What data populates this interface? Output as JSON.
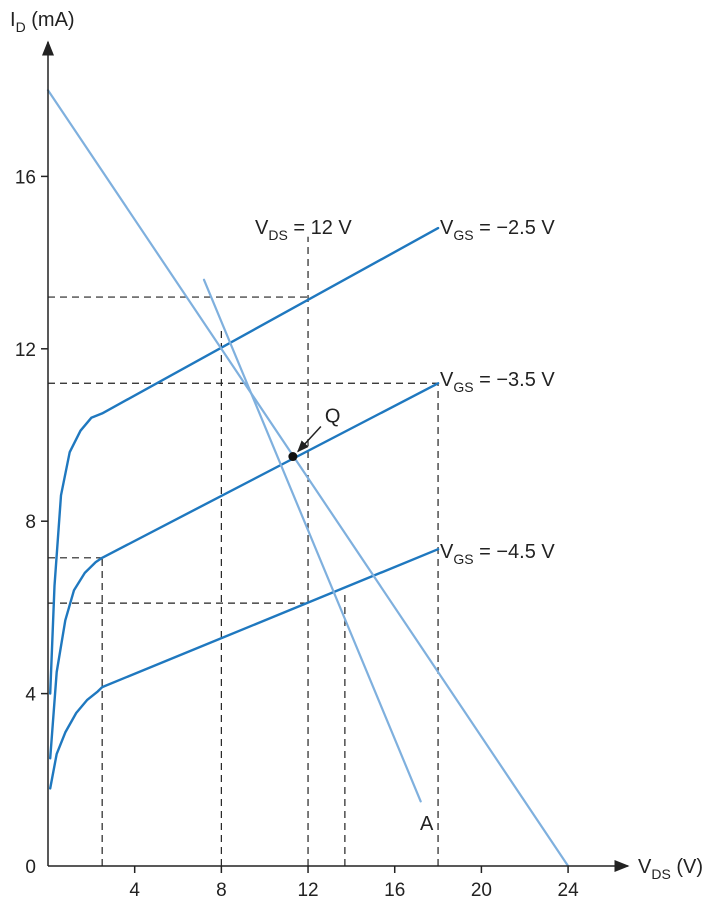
{
  "chart_data": {
    "type": "line",
    "title": "",
    "xlabel": {
      "main": "V",
      "sub": "DS",
      "unit": " (V)"
    },
    "ylabel": {
      "main": "I",
      "sub": "D",
      "unit": " (mA)"
    },
    "xlim": [
      0,
      26
    ],
    "ylim": [
      0,
      19
    ],
    "x_ticks": [
      {
        "value": 4,
        "label": "4"
      },
      {
        "value": 8,
        "label": "8"
      },
      {
        "value": 12,
        "label": "12"
      },
      {
        "value": 16,
        "label": "16"
      },
      {
        "value": 20,
        "label": "20"
      },
      {
        "value": 24,
        "label": "24"
      }
    ],
    "y_ticks": [
      {
        "value": 0,
        "label": "0"
      },
      {
        "value": 4,
        "label": "4"
      },
      {
        "value": 8,
        "label": "8"
      },
      {
        "value": 12,
        "label": "12"
      },
      {
        "value": 16,
        "label": "16"
      }
    ],
    "grid": false,
    "colors": {
      "curve": "#1f78bf",
      "load_line": "#7fb0de",
      "guide": "#222222",
      "axis": "#222222"
    },
    "series": [
      {
        "name": {
          "main": "V",
          "sub": "GS",
          "rest": " = −2.5 V"
        },
        "kind": "characteristic",
        "x": [
          0.1,
          0.3,
          0.6,
          1.0,
          1.5,
          2.0,
          2.5,
          18
        ],
        "y": [
          4.0,
          6.5,
          8.6,
          9.6,
          10.1,
          10.4,
          10.5,
          14.8
        ]
      },
      {
        "name": {
          "main": "V",
          "sub": "GS",
          "rest": " = −3.5 V"
        },
        "kind": "characteristic",
        "x": [
          0.1,
          0.4,
          0.8,
          1.2,
          1.7,
          2.2,
          2.5,
          18
        ],
        "y": [
          2.5,
          4.5,
          5.7,
          6.4,
          6.8,
          7.05,
          7.15,
          11.2
        ]
      },
      {
        "name": {
          "main": "V",
          "sub": "GS",
          "rest": " = −4.5 V"
        },
        "kind": "characteristic",
        "x": [
          0.1,
          0.4,
          0.8,
          1.3,
          1.8,
          2.3,
          2.5,
          18
        ],
        "y": [
          1.8,
          2.6,
          3.1,
          3.55,
          3.85,
          4.05,
          4.15,
          7.35
        ]
      },
      {
        "name": "",
        "kind": "load_line",
        "x": [
          0,
          24
        ],
        "y": [
          18,
          0
        ]
      },
      {
        "name": "A",
        "kind": "load_line",
        "x": [
          7.2,
          17.2
        ],
        "y": [
          13.6,
          1.5
        ]
      }
    ],
    "guides": [
      {
        "orientation": "vertical",
        "x": 12,
        "y": [
          0,
          14.6
        ]
      },
      {
        "orientation": "vertical",
        "x": 8,
        "y": [
          0,
          12.5
        ]
      },
      {
        "orientation": "vertical",
        "x": 2.5,
        "y": [
          0,
          7.15
        ]
      },
      {
        "orientation": "vertical",
        "x": 13.7,
        "y": [
          0,
          6.4
        ]
      },
      {
        "orientation": "vertical",
        "x": 18,
        "y": [
          0,
          11.2
        ]
      },
      {
        "orientation": "horizontal",
        "y": 13.2,
        "x": [
          0,
          12
        ]
      },
      {
        "orientation": "horizontal",
        "y": 11.2,
        "x": [
          0,
          18
        ]
      },
      {
        "orientation": "horizontal",
        "y": 7.15,
        "x": [
          0,
          2.5
        ]
      },
      {
        "orientation": "horizontal",
        "y": 6.1,
        "x": [
          0,
          12
        ]
      }
    ],
    "annotations": {
      "vds_line_label": {
        "main": "V",
        "sub": "DS",
        "rest": " = 12 V"
      },
      "q_point": {
        "label": "Q",
        "x": 11.3,
        "y": 9.5
      }
    }
  }
}
